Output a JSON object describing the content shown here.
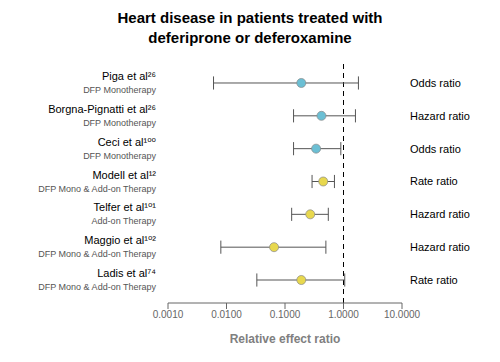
{
  "chart_data": {
    "type": "scatter",
    "title": "Heart disease in patients treated with\ndeferiprone or deferoxamine",
    "x_label": "Relative effect ratio",
    "categories": [
      "Piga et al²⁶",
      "Borgna-Pignatti et al²⁶",
      "Ceci et al¹⁰⁰",
      "Modell et al¹²",
      "Telfer et al¹⁰¹",
      "Maggio et al¹⁰²",
      "Ladis et al⁷⁴"
    ],
    "sublabels": [
      "DFP Monotherapy",
      "DFP Monotherapy",
      "DFP Monotherapy",
      "DFP Mono & Add-on Therapy",
      "Add-on Therapy",
      "DFP Mono & Add-on Therapy",
      "DFP Mono & Add-on Therapy"
    ],
    "ratio_types": [
      "Odds ratio",
      "Hazard ratio",
      "Odds ratio",
      "Rate ratio",
      "Hazard ratio",
      "Hazard ratio",
      "Rate ratio"
    ],
    "values": [
      0.19,
      0.42,
      0.34,
      0.45,
      0.27,
      0.065,
      0.19
    ],
    "ci_low": [
      0.006,
      0.14,
      0.14,
      0.29,
      0.13,
      0.008,
      0.033
    ],
    "ci_high": [
      1.8,
      1.6,
      0.9,
      0.7,
      0.55,
      0.5,
      1.05
    ],
    "colors": [
      "#6bbfd4",
      "#6bbfd4",
      "#6bbfd4",
      "#e8d84e",
      "#e8d84e",
      "#e8d84e",
      "#e8d84e"
    ],
    "ref_line": 1.0,
    "log": "x",
    "xlim": [
      0.001,
      10.0
    ],
    "xticks": [
      {
        "value": 0.001,
        "label": "0.0010"
      },
      {
        "value": 0.01,
        "label": "0.0100"
      },
      {
        "value": 0.1,
        "label": "0.1000"
      },
      {
        "value": 1.0,
        "label": "1.0000"
      },
      {
        "value": 10.0,
        "label": "10.0000"
      }
    ],
    "grid": false
  }
}
